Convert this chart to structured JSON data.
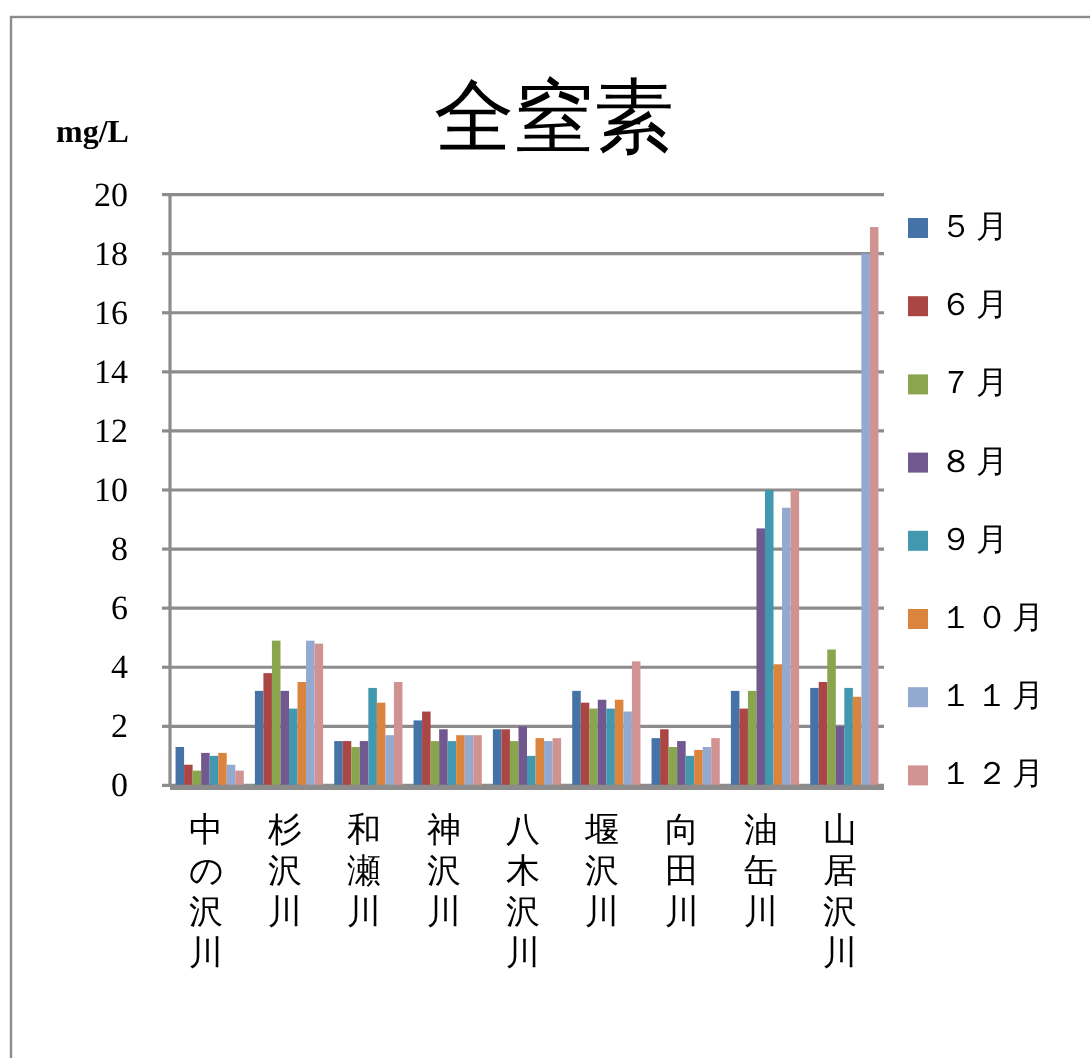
{
  "chart_data": {
    "type": "bar",
    "title": "全窒素",
    "ylabel": "mg/L",
    "categories": [
      "中の沢川",
      "杉沢川",
      "和瀬川",
      "神沢川",
      "八木沢川",
      "堰沢川",
      "向田川",
      "油缶川",
      "山居沢川"
    ],
    "ylim": [
      0,
      20
    ],
    "yticks": [
      0,
      2,
      4,
      6,
      8,
      10,
      12,
      14,
      16,
      18,
      20
    ],
    "grid": "y",
    "legend": "right",
    "series": [
      {
        "name": "５月",
        "color": "#4572a7",
        "values": [
          1.3,
          3.2,
          1.5,
          2.2,
          1.9,
          3.2,
          1.6,
          3.2,
          3.3
        ]
      },
      {
        "name": "６月",
        "color": "#aa4643",
        "values": [
          0.7,
          3.8,
          1.5,
          2.5,
          1.9,
          2.8,
          1.9,
          2.6,
          3.5
        ]
      },
      {
        "name": "７月",
        "color": "#89a54e",
        "values": [
          0.5,
          4.9,
          1.3,
          1.5,
          1.5,
          2.6,
          1.3,
          3.2,
          4.6
        ]
      },
      {
        "name": "８月",
        "color": "#71588f",
        "values": [
          1.1,
          3.2,
          1.5,
          1.9,
          2.0,
          2.9,
          1.5,
          8.7,
          2.0
        ]
      },
      {
        "name": "９月",
        "color": "#4198af",
        "values": [
          1.0,
          2.6,
          3.3,
          1.5,
          1.0,
          2.6,
          1.0,
          10.0,
          3.3
        ]
      },
      {
        "name": "１０月",
        "color": "#db843d",
        "values": [
          1.1,
          3.5,
          2.8,
          1.7,
          1.6,
          2.9,
          1.2,
          4.1,
          3.0
        ]
      },
      {
        "name": "１１月",
        "color": "#93a9cf",
        "values": [
          0.7,
          4.9,
          1.7,
          1.7,
          1.5,
          2.5,
          1.3,
          9.4,
          18.0
        ]
      },
      {
        "name": "１２月",
        "color": "#d19392",
        "values": [
          0.5,
          4.8,
          3.5,
          1.7,
          1.6,
          4.2,
          1.6,
          10.0,
          18.9
        ]
      }
    ]
  }
}
